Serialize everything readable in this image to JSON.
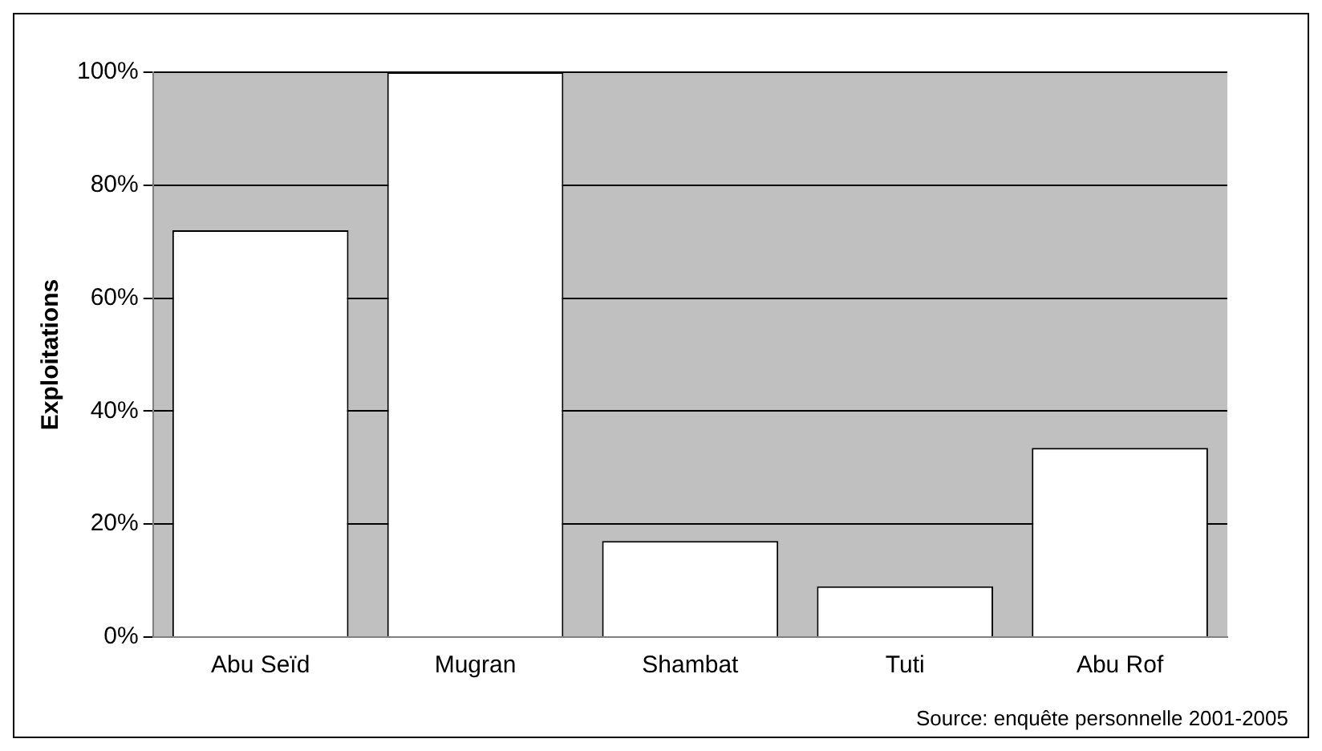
{
  "chart_data": {
    "type": "bar",
    "ylabel": "Exploitations",
    "categories": [
      "Abu Seïd",
      "Mugran",
      "Shambat",
      "Tuti",
      "Abu Rof"
    ],
    "values": [
      72,
      100,
      17,
      9,
      33.5
    ],
    "color": "#ffffff",
    "ylim": [
      0,
      100
    ],
    "yticks": [
      {
        "value": 0,
        "label": "0%"
      },
      {
        "value": 20,
        "label": "20%"
      },
      {
        "value": 40,
        "label": "40%"
      },
      {
        "value": 60,
        "label": "60%"
      },
      {
        "value": 80,
        "label": "80%"
      },
      {
        "value": 100,
        "label": "100%"
      }
    ],
    "grid": "y",
    "legend": false,
    "annotations": [
      "Source: enquête personnelle 2001-2005"
    ]
  }
}
